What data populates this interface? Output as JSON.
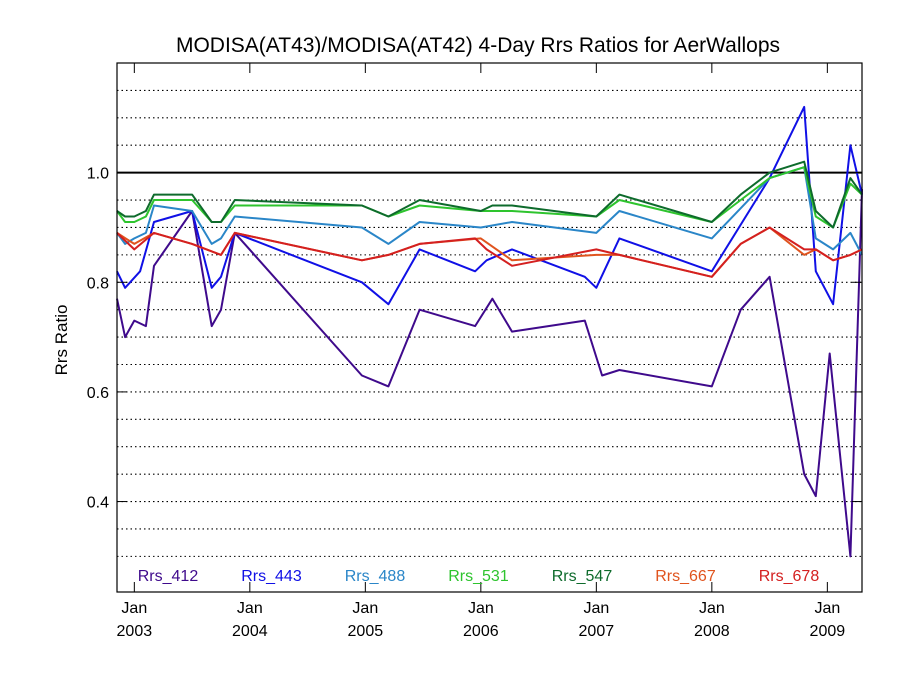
{
  "chart_data": {
    "type": "line",
    "title": "MODISA(AT43)/MODISA(AT42) 4-Day Rrs Ratios for AerWallops",
    "ylabel": "Rrs Ratio",
    "xlabel": "",
    "xlim": [
      2002.85,
      2009.3
    ],
    "ylim": [
      0.235,
      1.2
    ],
    "y_ticks": [
      {
        "value": 0.4,
        "label": "0.4"
      },
      {
        "value": 0.6,
        "label": "0.6"
      },
      {
        "value": 0.8,
        "label": "0.8"
      },
      {
        "value": 1.0,
        "label": "1.0"
      }
    ],
    "y_grid": [
      0.3,
      0.35,
      0.4,
      0.45,
      0.5,
      0.55,
      0.6,
      0.65,
      0.7,
      0.75,
      0.8,
      0.85,
      0.9,
      0.95,
      1.05,
      1.1,
      1.15
    ],
    "reference_line": 1.0,
    "x_ticks": [
      {
        "value": 2003.0,
        "month": "Jan",
        "year": "2003"
      },
      {
        "value": 2004.0,
        "month": "Jan",
        "year": "2004"
      },
      {
        "value": 2005.0,
        "month": "Jan",
        "year": "2005"
      },
      {
        "value": 2006.0,
        "month": "Jan",
        "year": "2006"
      },
      {
        "value": 2007.0,
        "month": "Jan",
        "year": "2007"
      },
      {
        "value": 2008.0,
        "month": "Jan",
        "year": "2008"
      },
      {
        "value": 2009.0,
        "month": "Jan",
        "year": "2009"
      }
    ],
    "grid": "y-dotted",
    "legend_placement": "bottom",
    "series": [
      {
        "name": "Rrs_412",
        "color": "#3f0a8c",
        "points": [
          [
            2002.85,
            0.77
          ],
          [
            2002.92,
            0.7
          ],
          [
            2003.0,
            0.73
          ],
          [
            2003.1,
            0.72
          ],
          [
            2003.17,
            0.83
          ],
          [
            2003.5,
            0.93
          ],
          [
            2003.67,
            0.72
          ],
          [
            2003.75,
            0.75
          ],
          [
            2003.87,
            0.89
          ],
          [
            2004.97,
            0.63
          ],
          [
            2005.2,
            0.61
          ],
          [
            2005.47,
            0.75
          ],
          [
            2005.95,
            0.72
          ],
          [
            2006.1,
            0.77
          ],
          [
            2006.27,
            0.71
          ],
          [
            2006.9,
            0.73
          ],
          [
            2007.05,
            0.63
          ],
          [
            2007.2,
            0.64
          ],
          [
            2008.0,
            0.61
          ],
          [
            2008.25,
            0.75
          ],
          [
            2008.5,
            0.81
          ],
          [
            2008.8,
            0.45
          ],
          [
            2008.9,
            0.41
          ],
          [
            2009.02,
            0.67
          ],
          [
            2009.2,
            0.3
          ],
          [
            2009.3,
            0.97
          ]
        ]
      },
      {
        "name": "Rrs_443",
        "color": "#1010e6",
        "points": [
          [
            2002.85,
            0.82
          ],
          [
            2002.92,
            0.79
          ],
          [
            2003.05,
            0.82
          ],
          [
            2003.17,
            0.91
          ],
          [
            2003.5,
            0.93
          ],
          [
            2003.67,
            0.79
          ],
          [
            2003.75,
            0.81
          ],
          [
            2003.87,
            0.89
          ],
          [
            2004.97,
            0.8
          ],
          [
            2005.2,
            0.76
          ],
          [
            2005.47,
            0.86
          ],
          [
            2005.95,
            0.82
          ],
          [
            2006.05,
            0.84
          ],
          [
            2006.27,
            0.86
          ],
          [
            2006.9,
            0.81
          ],
          [
            2007.0,
            0.79
          ],
          [
            2007.2,
            0.88
          ],
          [
            2008.0,
            0.82
          ],
          [
            2008.5,
            0.99
          ],
          [
            2008.8,
            1.12
          ],
          [
            2008.9,
            0.82
          ],
          [
            2009.05,
            0.76
          ],
          [
            2009.2,
            1.05
          ],
          [
            2009.3,
            0.96
          ]
        ]
      },
      {
        "name": "Rrs_488",
        "color": "#2a86c8",
        "points": [
          [
            2002.85,
            0.89
          ],
          [
            2002.92,
            0.87
          ],
          [
            2003.0,
            0.88
          ],
          [
            2003.1,
            0.89
          ],
          [
            2003.17,
            0.94
          ],
          [
            2003.5,
            0.93
          ],
          [
            2003.67,
            0.87
          ],
          [
            2003.75,
            0.88
          ],
          [
            2003.87,
            0.92
          ],
          [
            2004.97,
            0.9
          ],
          [
            2005.2,
            0.87
          ],
          [
            2005.47,
            0.91
          ],
          [
            2006.0,
            0.9
          ],
          [
            2006.27,
            0.91
          ],
          [
            2007.0,
            0.89
          ],
          [
            2007.2,
            0.93
          ],
          [
            2008.0,
            0.88
          ],
          [
            2008.5,
            0.99
          ],
          [
            2008.8,
            1.01
          ],
          [
            2008.9,
            0.88
          ],
          [
            2009.05,
            0.86
          ],
          [
            2009.2,
            0.89
          ],
          [
            2009.3,
            0.85
          ]
        ]
      },
      {
        "name": "Rrs_531",
        "color": "#2ec42e",
        "points": [
          [
            2002.85,
            0.93
          ],
          [
            2002.92,
            0.91
          ],
          [
            2003.0,
            0.91
          ],
          [
            2003.1,
            0.92
          ],
          [
            2003.17,
            0.95
          ],
          [
            2003.5,
            0.95
          ],
          [
            2003.67,
            0.91
          ],
          [
            2003.75,
            0.91
          ],
          [
            2003.87,
            0.94
          ],
          [
            2004.97,
            0.94
          ],
          [
            2005.2,
            0.92
          ],
          [
            2005.47,
            0.94
          ],
          [
            2006.0,
            0.93
          ],
          [
            2006.27,
            0.93
          ],
          [
            2007.0,
            0.92
          ],
          [
            2007.2,
            0.95
          ],
          [
            2008.0,
            0.91
          ],
          [
            2008.25,
            0.95
          ],
          [
            2008.5,
            0.99
          ],
          [
            2008.8,
            1.01
          ],
          [
            2008.9,
            0.92
          ],
          [
            2009.05,
            0.9
          ],
          [
            2009.2,
            0.98
          ],
          [
            2009.3,
            0.96
          ]
        ]
      },
      {
        "name": "Rrs_547",
        "color": "#0e6b2c",
        "points": [
          [
            2002.85,
            0.93
          ],
          [
            2002.92,
            0.92
          ],
          [
            2003.0,
            0.92
          ],
          [
            2003.1,
            0.93
          ],
          [
            2003.17,
            0.96
          ],
          [
            2003.5,
            0.96
          ],
          [
            2003.67,
            0.91
          ],
          [
            2003.75,
            0.91
          ],
          [
            2003.87,
            0.95
          ],
          [
            2004.97,
            0.94
          ],
          [
            2005.2,
            0.92
          ],
          [
            2005.47,
            0.95
          ],
          [
            2006.0,
            0.93
          ],
          [
            2006.1,
            0.94
          ],
          [
            2006.27,
            0.94
          ],
          [
            2007.0,
            0.92
          ],
          [
            2007.2,
            0.96
          ],
          [
            2008.0,
            0.91
          ],
          [
            2008.25,
            0.96
          ],
          [
            2008.5,
            1.0
          ],
          [
            2008.8,
            1.02
          ],
          [
            2008.9,
            0.93
          ],
          [
            2009.05,
            0.9
          ],
          [
            2009.2,
            0.99
          ],
          [
            2009.3,
            0.96
          ]
        ]
      },
      {
        "name": "Rrs_667",
        "color": "#e0541e",
        "points": [
          [
            2002.85,
            0.89
          ],
          [
            2003.0,
            0.87
          ],
          [
            2003.17,
            0.89
          ],
          [
            2003.5,
            0.87
          ],
          [
            2003.75,
            0.85
          ],
          [
            2003.87,
            0.89
          ],
          [
            2004.97,
            0.84
          ],
          [
            2005.2,
            0.85
          ],
          [
            2005.47,
            0.87
          ],
          [
            2006.0,
            0.88
          ],
          [
            2006.27,
            0.84
          ],
          [
            2007.0,
            0.85
          ],
          [
            2007.2,
            0.85
          ],
          [
            2008.0,
            0.81
          ],
          [
            2008.25,
            0.87
          ],
          [
            2008.5,
            0.9
          ],
          [
            2008.8,
            0.85
          ],
          [
            2008.9,
            0.86
          ],
          [
            2009.05,
            0.84
          ],
          [
            2009.2,
            0.85
          ],
          [
            2009.3,
            0.86
          ]
        ]
      },
      {
        "name": "Rrs_678",
        "color": "#d42020",
        "points": [
          [
            2002.85,
            0.89
          ],
          [
            2003.0,
            0.86
          ],
          [
            2003.17,
            0.89
          ],
          [
            2003.5,
            0.87
          ],
          [
            2003.75,
            0.85
          ],
          [
            2003.87,
            0.89
          ],
          [
            2004.97,
            0.84
          ],
          [
            2005.2,
            0.85
          ],
          [
            2005.47,
            0.87
          ],
          [
            2005.95,
            0.88
          ],
          [
            2006.05,
            0.86
          ],
          [
            2006.27,
            0.83
          ],
          [
            2007.0,
            0.86
          ],
          [
            2007.2,
            0.85
          ],
          [
            2008.0,
            0.81
          ],
          [
            2008.25,
            0.87
          ],
          [
            2008.5,
            0.9
          ],
          [
            2008.8,
            0.86
          ],
          [
            2008.9,
            0.86
          ],
          [
            2009.05,
            0.84
          ],
          [
            2009.2,
            0.85
          ],
          [
            2009.3,
            0.86
          ]
        ]
      }
    ]
  }
}
